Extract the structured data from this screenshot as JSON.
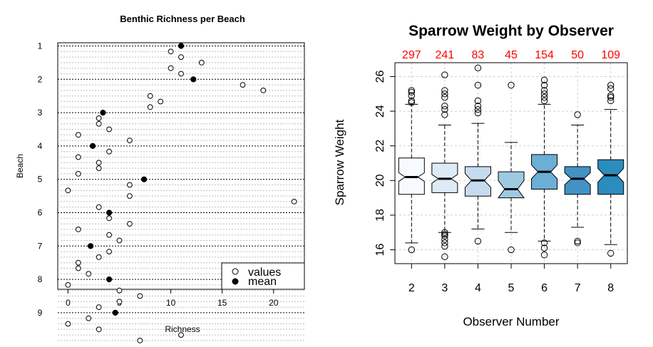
{
  "chart_data": [
    {
      "type": "scatter",
      "title": "Benthic Richness per Beach",
      "xlabel": "Richness",
      "ylabel": "Beach",
      "xlim": [
        -1,
        23
      ],
      "x_ticks": [
        "0",
        "5",
        "10",
        "15",
        "20"
      ],
      "y_ticks": [
        "1",
        "2",
        "3",
        "4",
        "5",
        "6",
        "7",
        "8",
        "9"
      ],
      "legend": {
        "position": "bottom-right",
        "entries": [
          "values",
          "mean"
        ]
      },
      "groups": [
        {
          "name": "1",
          "mean": 11.0,
          "values": [
            10,
            11,
            13,
            10,
            11
          ]
        },
        {
          "name": "2",
          "mean": 12.2,
          "values": [
            17,
            19,
            8,
            9,
            8
          ]
        },
        {
          "name": "3",
          "mean": 3.4,
          "values": [
            3,
            3,
            4,
            1,
            6
          ]
        },
        {
          "name": "4",
          "mean": 2.4,
          "values": [
            4,
            1,
            3,
            3,
            1
          ]
        },
        {
          "name": "5",
          "mean": 7.4,
          "values": [
            6,
            0,
            6,
            22,
            3
          ]
        },
        {
          "name": "6",
          "mean": 4.0,
          "values": [
            4,
            6,
            1,
            4,
            5
          ]
        },
        {
          "name": "7",
          "mean": 2.2,
          "values": [
            4,
            3,
            1,
            1,
            2
          ]
        },
        {
          "name": "8",
          "mean": 4.0,
          "values": [
            0,
            5,
            7,
            5,
            3
          ]
        },
        {
          "name": "9",
          "mean": 4.6,
          "values": [
            2,
            0,
            3,
            11,
            7
          ]
        }
      ]
    },
    {
      "type": "box",
      "title": "Sparrow Weight by Observer",
      "xlabel": "Observer Number",
      "ylabel": "Sparrow Weight",
      "ylim": [
        15.2,
        26.8
      ],
      "y_ticks": [
        "16",
        "18",
        "20",
        "22",
        "24",
        "26"
      ],
      "categories": [
        "2",
        "3",
        "4",
        "5",
        "6",
        "7",
        "8"
      ],
      "counts": [
        "297",
        "241",
        "83",
        "45",
        "154",
        "50",
        "109"
      ],
      "count_color": "#ff0000",
      "grid": true,
      "boxes": [
        {
          "category": "2",
          "q1": 19.2,
          "median": 20.2,
          "q3": 21.3,
          "whisker_low": 16.4,
          "whisker_high": 24.4,
          "notch": [
            19.95,
            20.45
          ],
          "color": "#f7fbff",
          "outliers": [
            16.0,
            24.5,
            24.6,
            24.9,
            25.1,
            25.2
          ]
        },
        {
          "category": "3",
          "q1": 19.3,
          "median": 20.1,
          "q3": 21.0,
          "whisker_low": 17.0,
          "whisker_high": 23.2,
          "notch": [
            19.85,
            20.35
          ],
          "color": "#ddebf7",
          "outliers": [
            15.6,
            16.2,
            16.4,
            16.6,
            16.8,
            16.9,
            17.0,
            23.8,
            24.1,
            24.3,
            24.8,
            25.0,
            25.2,
            26.1
          ]
        },
        {
          "category": "4",
          "q1": 19.1,
          "median": 20.0,
          "q3": 20.8,
          "whisker_low": 17.2,
          "whisker_high": 23.3,
          "notch": [
            19.6,
            20.4
          ],
          "color": "#c6dbef",
          "outliers": [
            16.5,
            23.9,
            24.1,
            24.3,
            24.6,
            25.5,
            26.5
          ]
        },
        {
          "category": "5",
          "q1": 19.0,
          "median": 19.5,
          "q3": 20.5,
          "whisker_low": 17.0,
          "whisker_high": 22.2,
          "notch": [
            19.0,
            20.0
          ],
          "color": "#9ecae1",
          "outliers": [
            16.0,
            25.5
          ]
        },
        {
          "category": "6",
          "q1": 19.5,
          "median": 20.5,
          "q3": 21.5,
          "whisker_low": 16.5,
          "whisker_high": 24.4,
          "notch": [
            20.1,
            20.9
          ],
          "color": "#6baed6",
          "outliers": [
            15.7,
            16.1,
            16.4,
            24.6,
            24.8,
            25.0,
            25.2,
            25.5,
            25.8
          ]
        },
        {
          "category": "7",
          "q1": 19.2,
          "median": 20.1,
          "q3": 20.8,
          "whisker_low": 17.3,
          "whisker_high": 23.2,
          "notch": [
            19.75,
            20.45
          ],
          "color": "#4292c6",
          "outliers": [
            16.4,
            16.5,
            23.8
          ]
        },
        {
          "category": "8",
          "q1": 19.2,
          "median": 20.3,
          "q3": 21.2,
          "whisker_low": 16.3,
          "whisker_high": 24.1,
          "notch": [
            19.9,
            20.7
          ],
          "color": "#2b8cbe",
          "outliers": [
            15.8,
            24.6,
            24.8,
            24.9,
            25.3,
            25.5
          ]
        }
      ]
    }
  ]
}
